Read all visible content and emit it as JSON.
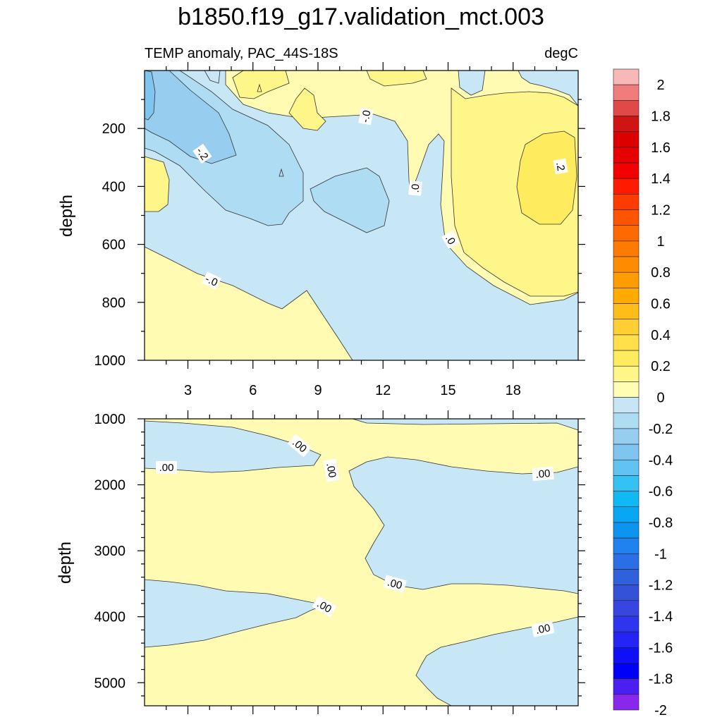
{
  "chart_data": [
    {
      "type": "contour",
      "panel": "upper",
      "title": "b1850.f19_g17.validation_mct.003",
      "subtitle_left": "TEMP anomaly, PAC_44S-18S",
      "subtitle_right": "degC",
      "xlabel": "",
      "ylabel": "depth",
      "xlim": [
        1,
        21
      ],
      "ylim": [
        1000,
        0
      ],
      "x_ticks": [
        "3",
        "6",
        "9",
        "12",
        "15",
        "18"
      ],
      "y_ticks": [
        "200",
        "400",
        "600",
        "800",
        "1000"
      ],
      "contour_labels": [
        "-.2",
        "-.0",
        ".0",
        "-.0",
        ".0",
        ".2",
        ".0"
      ],
      "max_anomaly_region": {
        "x": [
          17.5,
          20.5
        ],
        "depth": [
          200,
          550
        ],
        "value": 0.2
      },
      "min_anomaly_region": {
        "x": [
          1,
          5
        ],
        "depth": [
          0,
          320
        ],
        "value": -0.3
      }
    },
    {
      "type": "contour",
      "panel": "lower",
      "xlabel": "",
      "ylabel": "depth",
      "xlim": [
        1,
        21
      ],
      "ylim": [
        5350,
        1000
      ],
      "y_ticks": [
        "1000",
        "2000",
        "3000",
        "4000",
        "5000"
      ],
      "contour_labels": [
        ".00",
        ".00",
        ".00",
        ".00",
        ".00",
        ".00"
      ]
    }
  ],
  "colorbar": {
    "levels_shown": [
      "2",
      "1.8",
      "1.6",
      "1.4",
      "1.2",
      "1",
      "0.8",
      "0.6",
      "0.4",
      "0.2",
      "0",
      "-0.2",
      "-0.4",
      "-0.6",
      "-0.8",
      "-1",
      "-1.2",
      "-1.4",
      "-1.6",
      "-1.8",
      "-2"
    ],
    "colors_top_to_bottom": [
      "#f9b8b8",
      "#f07c7c",
      "#e14848",
      "#d01414",
      "#dc0000",
      "#e60000",
      "#f40000",
      "#ff1a00",
      "#ff3c00",
      "#ff5500",
      "#ff6a00",
      "#ff7b00",
      "#ff8c00",
      "#ff9d00",
      "#ffab00",
      "#ffbd1a",
      "#ffcf33",
      "#ffdf4a",
      "#ffec5e",
      "#fff68a",
      "#fffcb4",
      "#c6e6f6",
      "#aedcf2",
      "#97cef0",
      "#7fc5f0",
      "#62c2f2",
      "#34c2f4",
      "#0fbaf4",
      "#07a7f4",
      "#0d94f0",
      "#1f82ee",
      "#2b6ee6",
      "#3060dc",
      "#3452d8",
      "#3845e0",
      "#2f35ee",
      "#2424f4",
      "#1010f8",
      "#0000f8",
      "#4a20f0",
      "#8828ec"
    ]
  }
}
